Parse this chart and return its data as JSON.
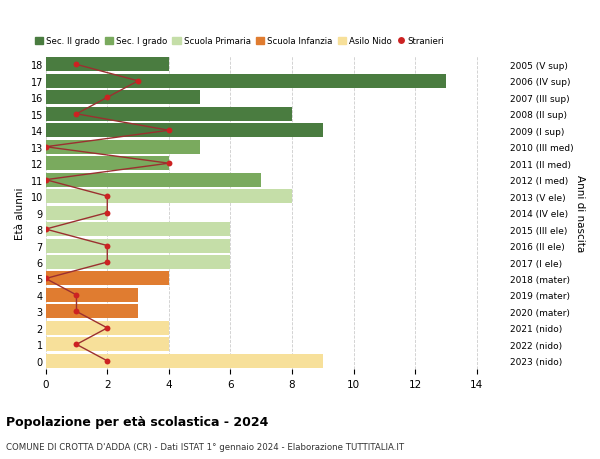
{
  "ages": [
    18,
    17,
    16,
    15,
    14,
    13,
    12,
    11,
    10,
    9,
    8,
    7,
    6,
    5,
    4,
    3,
    2,
    1,
    0
  ],
  "right_labels": [
    "2005 (V sup)",
    "2006 (IV sup)",
    "2007 (III sup)",
    "2008 (II sup)",
    "2009 (I sup)",
    "2010 (III med)",
    "2011 (II med)",
    "2012 (I med)",
    "2013 (V ele)",
    "2014 (IV ele)",
    "2015 (III ele)",
    "2016 (II ele)",
    "2017 (I ele)",
    "2018 (mater)",
    "2019 (mater)",
    "2020 (mater)",
    "2021 (nido)",
    "2022 (nido)",
    "2023 (nido)"
  ],
  "bar_values": [
    4,
    13,
    5,
    8,
    9,
    5,
    4,
    7,
    8,
    2,
    6,
    6,
    6,
    4,
    3,
    3,
    4,
    4,
    9
  ],
  "bar_colors": [
    "#4a7c40",
    "#4a7c40",
    "#4a7c40",
    "#4a7c40",
    "#4a7c40",
    "#7aaa5e",
    "#7aaa5e",
    "#7aaa5e",
    "#c5dea8",
    "#c5dea8",
    "#c5dea8",
    "#c5dea8",
    "#c5dea8",
    "#e07c30",
    "#e07c30",
    "#e07c30",
    "#f7e09a",
    "#f7e09a",
    "#f7e09a"
  ],
  "stranieri_values": [
    1,
    3,
    2,
    1,
    4,
    0,
    4,
    0,
    2,
    2,
    0,
    2,
    2,
    0,
    1,
    1,
    2,
    1,
    2
  ],
  "title": "Popolazione per età scolastica - 2024",
  "subtitle": "COMUNE DI CROTTA D'ADDA (CR) - Dati ISTAT 1° gennaio 2024 - Elaborazione TUTTITALIA.IT",
  "ylabel": "Età alunni",
  "ylabel2": "Anni di nascita",
  "xlim": [
    0,
    15
  ],
  "xticks": [
    0,
    2,
    4,
    6,
    8,
    10,
    12,
    14
  ],
  "legend_labels": [
    "Sec. II grado",
    "Sec. I grado",
    "Scuola Primaria",
    "Scuola Infanzia",
    "Asilo Nido",
    "Stranieri"
  ],
  "legend_colors": [
    "#4a7c40",
    "#7aaa5e",
    "#c5dea8",
    "#e07c30",
    "#f7e09a",
    "#cc2222"
  ],
  "stranieri_color": "#cc2222",
  "line_color": "#9b3030",
  "bg_color": "#ffffff",
  "grid_color": "#cccccc"
}
